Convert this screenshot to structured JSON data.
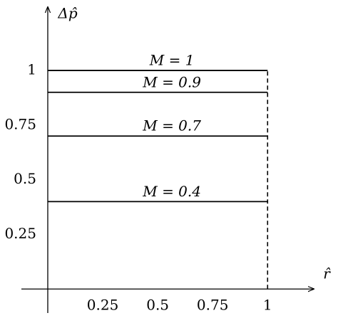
{
  "chart_data": {
    "type": "line",
    "x_label": "r̂",
    "y_label": "Δp̂",
    "x": [
      0,
      1
    ],
    "series": [
      {
        "name": "M = 1",
        "color": "#000000",
        "values": [
          1,
          1
        ]
      },
      {
        "name": "M = 0.9",
        "color": "#000000",
        "values": [
          0.9,
          0.9
        ]
      },
      {
        "name": "M = 0.7",
        "color": "#000000",
        "values": [
          0.7,
          0.7
        ]
      },
      {
        "name": "M = 0.4",
        "color": "#000000",
        "values": [
          0.4,
          0.4
        ]
      }
    ],
    "vlines": [
      {
        "x": 1,
        "y": [
          0,
          1
        ],
        "style": "dashed",
        "color": "#000000"
      }
    ],
    "xlim": [
      -0.12,
      1.21
    ],
    "ylim": [
      -0.11,
      1.29
    ],
    "xticks": [
      0.25,
      0.5,
      0.75,
      1
    ],
    "yticks": [
      0.25,
      0.5,
      0.75,
      1
    ],
    "grid": false
  }
}
